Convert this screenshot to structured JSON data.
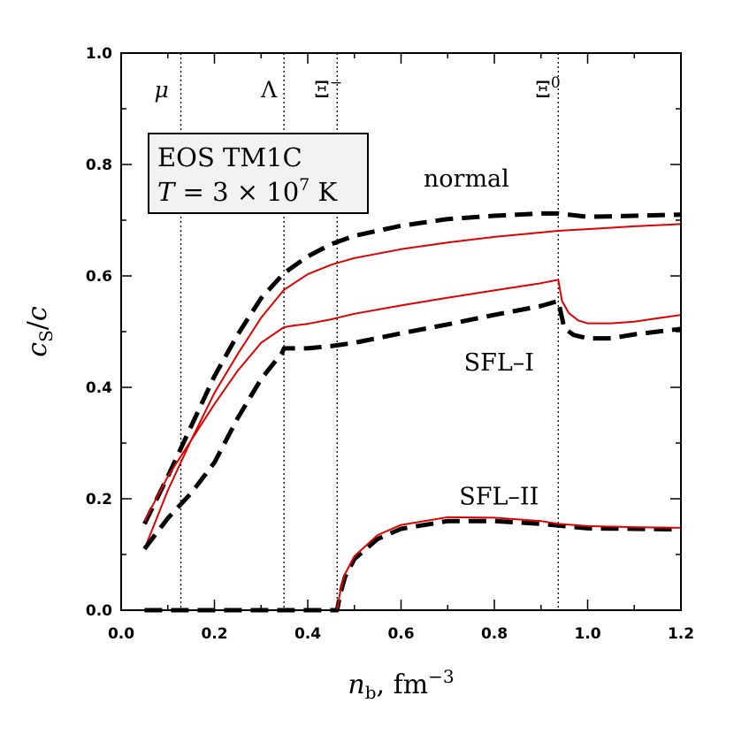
{
  "chart_data": {
    "type": "line",
    "title": "",
    "xlabel": "n_b, fm^-3",
    "ylabel": "c_S/c",
    "xlim": [
      0.0,
      1.2
    ],
    "ylim": [
      0.0,
      1.0
    ],
    "x_ticks": [
      "0.0",
      "0.2",
      "0.4",
      "0.6",
      "0.8",
      "1.0",
      "1.2"
    ],
    "y_ticks": [
      "0.0",
      "0.2",
      "0.4",
      "0.6",
      "0.8",
      "1.0"
    ],
    "grid": false,
    "legend": "none",
    "annotation_box": {
      "line1": "EOS TM1C",
      "line2_var": "T",
      "line2_expr": " = 3 × 10",
      "line2_exp": "7",
      "line2_unit": " K"
    },
    "thresholds": [
      {
        "label": "μ",
        "x": 0.128,
        "sup": ""
      },
      {
        "label": "Λ",
        "x": 0.349,
        "sup": ""
      },
      {
        "label": "Ξ",
        "x": 0.463,
        "sup": "−"
      },
      {
        "label": "Ξ",
        "x": 0.937,
        "sup": "0"
      }
    ],
    "curve_labels": [
      {
        "text": "normal",
        "x": 0.74,
        "y": 0.76
      },
      {
        "text": "SFL–I",
        "x": 0.81,
        "y": 0.43
      },
      {
        "text": "SFL–II",
        "x": 0.81,
        "y": 0.19
      }
    ],
    "series": [
      {
        "style": "dashed",
        "color": "#000000",
        "x": [
          0.05,
          0.1,
          0.15,
          0.2,
          0.25,
          0.3,
          0.349,
          0.4,
          0.45,
          0.5,
          0.6,
          0.7,
          0.8,
          0.9,
          0.937,
          1.0,
          1.1,
          1.2
        ],
        "y": [
          0.155,
          0.24,
          0.33,
          0.42,
          0.495,
          0.56,
          0.605,
          0.635,
          0.657,
          0.672,
          0.69,
          0.702,
          0.708,
          0.712,
          0.712,
          0.706,
          0.708,
          0.71
        ]
      },
      {
        "style": "solid",
        "color": "#e00000",
        "x": [
          0.05,
          0.1,
          0.15,
          0.2,
          0.25,
          0.3,
          0.349,
          0.4,
          0.45,
          0.5,
          0.6,
          0.7,
          0.8,
          0.9,
          0.937,
          1.0,
          1.1,
          1.2
        ],
        "y": [
          0.11,
          0.215,
          0.305,
          0.39,
          0.46,
          0.525,
          0.575,
          0.603,
          0.62,
          0.632,
          0.648,
          0.66,
          0.67,
          0.678,
          0.681,
          0.684,
          0.689,
          0.693
        ]
      },
      {
        "style": "solid",
        "color": "#e00000",
        "x": [
          0.05,
          0.1,
          0.15,
          0.2,
          0.25,
          0.3,
          0.349,
          0.37,
          0.4,
          0.45,
          0.5,
          0.6,
          0.7,
          0.8,
          0.9,
          0.937,
          0.945,
          0.96,
          0.98,
          1.0,
          1.05,
          1.1,
          1.15,
          1.2
        ],
        "y": [
          0.16,
          0.24,
          0.305,
          0.37,
          0.43,
          0.48,
          0.508,
          0.511,
          0.514,
          0.522,
          0.532,
          0.547,
          0.561,
          0.574,
          0.587,
          0.593,
          0.555,
          0.533,
          0.52,
          0.515,
          0.515,
          0.518,
          0.524,
          0.53
        ]
      },
      {
        "style": "dashed",
        "color": "#000000",
        "x": [
          0.05,
          0.1,
          0.15,
          0.2,
          0.25,
          0.3,
          0.345,
          0.349,
          0.4,
          0.45,
          0.5,
          0.6,
          0.7,
          0.8,
          0.9,
          0.937,
          0.95,
          0.97,
          1.0,
          1.05,
          1.1,
          1.15,
          1.2
        ],
        "y": [
          0.11,
          0.165,
          0.21,
          0.265,
          0.345,
          0.415,
          0.462,
          0.47,
          0.47,
          0.474,
          0.48,
          0.497,
          0.513,
          0.53,
          0.546,
          0.555,
          0.506,
          0.494,
          0.488,
          0.488,
          0.495,
          0.5,
          0.505
        ]
      },
      {
        "style": "dashed",
        "color": "#000000",
        "x": [
          0.05,
          0.2,
          0.4,
          0.463,
          0.47,
          0.48,
          0.5,
          0.55,
          0.6,
          0.7,
          0.8,
          0.9,
          0.937,
          1.0,
          1.1,
          1.2
        ],
        "y": [
          0.0,
          0.0,
          0.0,
          0.0,
          0.03,
          0.06,
          0.092,
          0.128,
          0.146,
          0.16,
          0.16,
          0.155,
          0.152,
          0.147,
          0.146,
          0.145
        ]
      },
      {
        "style": "solid",
        "color": "#e00000",
        "x": [
          0.05,
          0.2,
          0.4,
          0.463,
          0.47,
          0.48,
          0.5,
          0.55,
          0.6,
          0.7,
          0.8,
          0.9,
          0.937,
          1.0,
          1.1,
          1.2
        ],
        "y": [
          0.0,
          0.0,
          0.0,
          0.0,
          0.035,
          0.065,
          0.097,
          0.135,
          0.153,
          0.167,
          0.166,
          0.16,
          0.155,
          0.151,
          0.149,
          0.148
        ]
      }
    ]
  }
}
